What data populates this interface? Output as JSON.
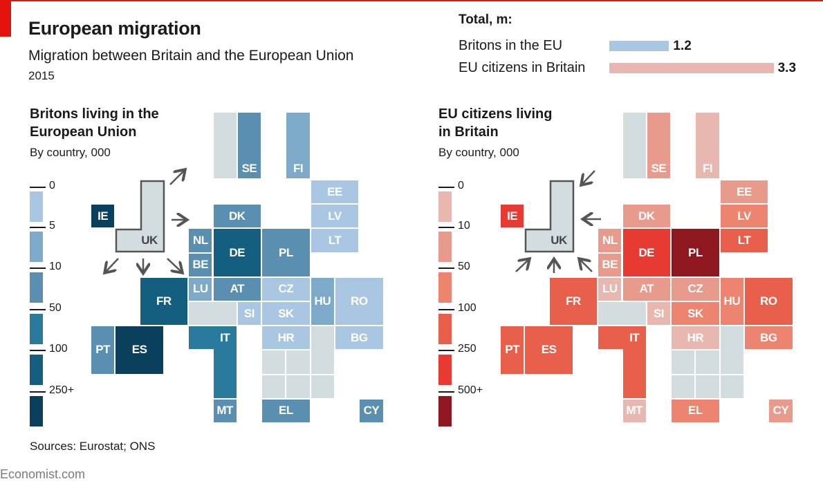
{
  "header": {
    "title": "European migration",
    "subtitle": "Migration between Britain and the European Union",
    "year": "2015"
  },
  "totals": {
    "title": "Total, m:",
    "rows": [
      {
        "label": "Britons in the EU",
        "value": 1.2,
        "value_label": "1.2",
        "color": "#a9c6e3"
      },
      {
        "label": "EU citizens in Britain",
        "value": 3.3,
        "value_label": "3.3",
        "color": "#e8b7b0"
      }
    ]
  },
  "left_map": {
    "title_line1": "Britons living in the",
    "title_line2": "European Union",
    "subtitle": "By country, 000",
    "legend_ticks": [
      "0",
      "5",
      "10",
      "50",
      "100",
      "250+"
    ],
    "colors": [
      "#a9c6e3",
      "#7eaaca",
      "#5a8fb2",
      "#2a7a9e",
      "#145f80",
      "#0a3f5e"
    ],
    "countries": [
      {
        "code": "SE",
        "bin": 2
      },
      {
        "code": "FI",
        "bin": 1
      },
      {
        "code": "EE",
        "bin": 0
      },
      {
        "code": "LV",
        "bin": 0
      },
      {
        "code": "LT",
        "bin": 0
      },
      {
        "code": "IE",
        "bin": 5
      },
      {
        "code": "DK",
        "bin": 2
      },
      {
        "code": "NL",
        "bin": 2
      },
      {
        "code": "BE",
        "bin": 2
      },
      {
        "code": "DE",
        "bin": 4
      },
      {
        "code": "PL",
        "bin": 2
      },
      {
        "code": "FR",
        "bin": 4
      },
      {
        "code": "LU",
        "bin": 1
      },
      {
        "code": "AT",
        "bin": 2
      },
      {
        "code": "CZ",
        "bin": 0
      },
      {
        "code": "HU",
        "bin": 1
      },
      {
        "code": "RO",
        "bin": 0
      },
      {
        "code": "SI",
        "bin": 0
      },
      {
        "code": "SK",
        "bin": 0
      },
      {
        "code": "PT",
        "bin": 2
      },
      {
        "code": "ES",
        "bin": 5
      },
      {
        "code": "IT",
        "bin": 3
      },
      {
        "code": "HR",
        "bin": 0
      },
      {
        "code": "BG",
        "bin": 0
      },
      {
        "code": "MT",
        "bin": 2
      },
      {
        "code": "EL",
        "bin": 2
      },
      {
        "code": "CY",
        "bin": 2
      }
    ]
  },
  "right_map": {
    "title_line1": "EU citizens living",
    "title_line2": "in Britain",
    "subtitle": "By country, 000",
    "legend_ticks": [
      "0",
      "10",
      "50",
      "100",
      "250",
      "500+"
    ],
    "colors": [
      "#e8b7b0",
      "#e89b8c",
      "#ec8470",
      "#e8604c",
      "#e63a32",
      "#8e1720"
    ],
    "countries": [
      {
        "code": "SE",
        "bin": 1
      },
      {
        "code": "FI",
        "bin": 0
      },
      {
        "code": "EE",
        "bin": 1
      },
      {
        "code": "LV",
        "bin": 2
      },
      {
        "code": "LT",
        "bin": 3
      },
      {
        "code": "IE",
        "bin": 4
      },
      {
        "code": "DK",
        "bin": 1
      },
      {
        "code": "NL",
        "bin": 1
      },
      {
        "code": "BE",
        "bin": 1
      },
      {
        "code": "DE",
        "bin": 4
      },
      {
        "code": "PL",
        "bin": 5
      },
      {
        "code": "FR",
        "bin": 3
      },
      {
        "code": "LU",
        "bin": 0
      },
      {
        "code": "AT",
        "bin": 1
      },
      {
        "code": "CZ",
        "bin": 1
      },
      {
        "code": "HU",
        "bin": 2
      },
      {
        "code": "RO",
        "bin": 3
      },
      {
        "code": "SI",
        "bin": 0
      },
      {
        "code": "SK",
        "bin": 2
      },
      {
        "code": "PT",
        "bin": 3
      },
      {
        "code": "ES",
        "bin": 3
      },
      {
        "code": "IT",
        "bin": 3
      },
      {
        "code": "HR",
        "bin": 0
      },
      {
        "code": "BG",
        "bin": 2
      },
      {
        "code": "MT",
        "bin": 0
      },
      {
        "code": "EL",
        "bin": 2
      },
      {
        "code": "CY",
        "bin": 1
      }
    ]
  },
  "uk_label": "UK",
  "footer": {
    "sources": "Sources: Eurostat; ONS",
    "brand": "Economist.com"
  }
}
